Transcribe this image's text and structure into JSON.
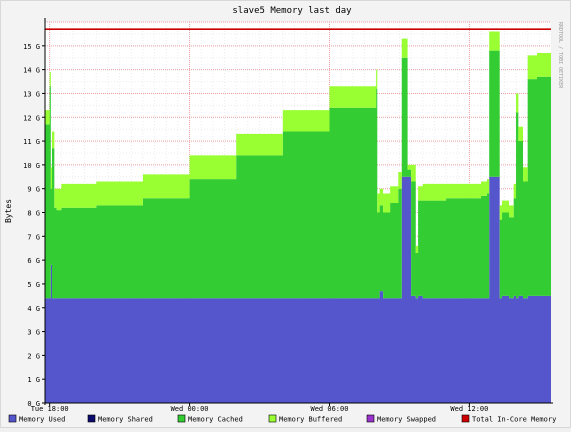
{
  "chart_data": {
    "type": "area",
    "title": "slave5 Memory last day",
    "ylabel": "Bytes",
    "xlabel": "",
    "watermark": "RRDTOOL / TOBI OETIKER",
    "ylim": [
      0,
      16
    ],
    "y_unit": "G",
    "y_ticks": [
      0,
      1,
      2,
      3,
      4,
      5,
      6,
      7,
      8,
      9,
      10,
      11,
      12,
      13,
      14,
      15
    ],
    "x_tick_labels": [
      {
        "label": "Tue 18:00",
        "t": 0
      },
      {
        "label": "Wed 00:00",
        "t": 6
      },
      {
        "label": "Wed 06:00",
        "t": 12
      },
      {
        "label": "Wed 12:00",
        "t": 18
      }
    ],
    "x_range": [
      -0.2,
      21.5
    ],
    "grid": true,
    "stack_order": [
      "Memory Used",
      "Memory Shared",
      "Memory Cached",
      "Memory Buffered",
      "Memory Swapped"
    ],
    "series": [
      {
        "name": "Memory Used",
        "color": "#5555cc",
        "kind": "stack",
        "x": [
          -0.2,
          0.0,
          0.05,
          0.1,
          0.2,
          0.3,
          0.5,
          2,
          4,
          6,
          8,
          10,
          12,
          14,
          14.05,
          14.15,
          14.3,
          14.6,
          14.95,
          15.1,
          15.35,
          15.5,
          15.7,
          15.8,
          16,
          17,
          18,
          18.5,
          18.75,
          18.85,
          19.3,
          19.4,
          19.7,
          19.9,
          20.0,
          20.1,
          20.3,
          20.5,
          20.9,
          21.5
        ],
        "values": [
          4.4,
          4.4,
          5.8,
          4.4,
          4.4,
          4.4,
          4.4,
          4.4,
          4.4,
          4.4,
          4.4,
          4.4,
          4.4,
          4.4,
          4.4,
          4.7,
          4.4,
          4.4,
          4.4,
          9.5,
          9.5,
          4.5,
          4.4,
          4.5,
          4.4,
          4.4,
          4.4,
          4.4,
          4.4,
          9.5,
          4.4,
          4.5,
          4.4,
          4.5,
          4.4,
          4.5,
          4.4,
          4.5,
          4.5,
          4.5
        ]
      },
      {
        "name": "Memory Shared",
        "color": "#0b0b6e",
        "kind": "stack",
        "x": [
          -0.2,
          21.5
        ],
        "values": [
          0,
          0
        ]
      },
      {
        "name": "Memory Cached",
        "color": "#33cc33",
        "kind": "stack",
        "x": [
          -0.2,
          0.0,
          0.05,
          0.1,
          0.2,
          0.3,
          0.5,
          2,
          4,
          6,
          8,
          10,
          12,
          14,
          14.05,
          14.15,
          14.3,
          14.6,
          14.95,
          15.1,
          15.35,
          15.5,
          15.7,
          15.8,
          16,
          17,
          18,
          18.5,
          18.75,
          18.85,
          19.3,
          19.4,
          19.7,
          19.9,
          20.0,
          20.1,
          20.3,
          20.5,
          20.9,
          21.5
        ],
        "values": [
          7.3,
          8.9,
          3.2,
          6.3,
          3.8,
          3.7,
          3.8,
          3.9,
          4.2,
          5.0,
          6.0,
          7.0,
          8.0,
          8.8,
          3.6,
          3.6,
          3.6,
          4.0,
          4.6,
          5.0,
          0.3,
          4.8,
          1.9,
          4.0,
          4.1,
          4.2,
          4.2,
          4.3,
          4.4,
          5.3,
          3.3,
          3.5,
          3.4,
          4.1,
          7.8,
          6.5,
          4.9,
          9.1,
          9.2,
          9.3
        ]
      },
      {
        "name": "Memory Buffered",
        "color": "#99ff33",
        "kind": "stack",
        "x": [
          -0.2,
          0.0,
          0.05,
          0.1,
          0.2,
          0.3,
          0.5,
          2,
          4,
          6,
          8,
          10,
          12,
          14,
          14.05,
          14.15,
          14.3,
          14.6,
          14.95,
          15.1,
          15.35,
          15.5,
          15.7,
          15.8,
          16,
          17,
          18,
          18.5,
          18.75,
          18.85,
          19.3,
          19.4,
          19.7,
          19.9,
          20.0,
          20.1,
          20.3,
          20.5,
          20.9,
          21.5
        ],
        "values": [
          0.6,
          0.6,
          0.9,
          0.7,
          0.8,
          0.9,
          1.0,
          1.0,
          1.0,
          1.0,
          0.9,
          0.9,
          0.9,
          0.8,
          0.8,
          0.7,
          0.8,
          0.7,
          0.7,
          0.8,
          0.2,
          0.7,
          0.3,
          0.6,
          0.7,
          0.6,
          0.6,
          0.6,
          0.6,
          0.8,
          0.6,
          0.5,
          0.5,
          0.6,
          0.8,
          0.6,
          0.6,
          1.0,
          1.0,
          1.0
        ]
      },
      {
        "name": "Memory Swapped",
        "color": "#9933cc",
        "kind": "stack",
        "x": [
          -0.2,
          21.5
        ],
        "values": [
          0,
          0
        ]
      },
      {
        "name": "Total In-Core Memory",
        "color": "#cc0000",
        "kind": "line",
        "x": [
          -0.2,
          21.5
        ],
        "values": [
          15.7,
          15.7
        ]
      }
    ]
  }
}
